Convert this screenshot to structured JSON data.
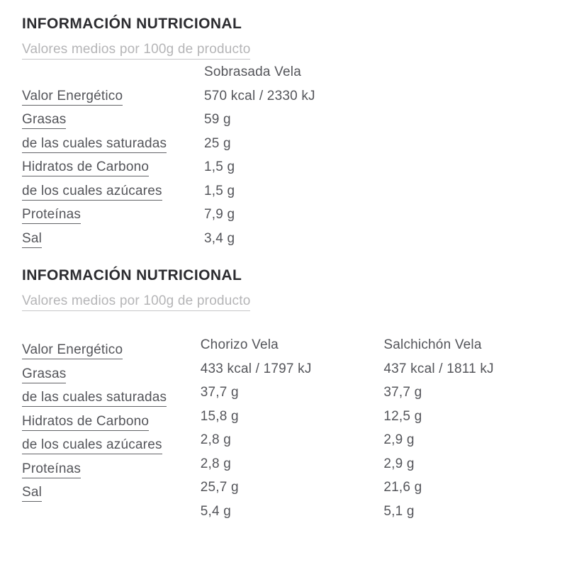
{
  "colors": {
    "heading_text": "#2c2c30",
    "body_text": "#54555a",
    "muted_subtitle": "#b5b5b7",
    "background": "#ffffff"
  },
  "sections": [
    {
      "heading": "INFORMACIÓN NUTRICIONAL",
      "subtitle": "Valores medios por 100g de producto",
      "columns": [
        "Sobrasada Vela"
      ],
      "row_labels": [
        "Valor Energético",
        "Grasas",
        "de las cuales saturadas",
        "Hidratos de Carbono",
        "de los cuales azúcares",
        "Proteínas",
        "Sal"
      ],
      "value_rows": [
        [
          "570 kcal / 2330 kJ"
        ],
        [
          "59 g"
        ],
        [
          "25 g"
        ],
        [
          "1,5 g"
        ],
        [
          "1,5 g"
        ],
        [
          "7,9 g"
        ],
        [
          "3,4 g"
        ]
      ]
    },
    {
      "heading": "INFORMACIÓN NUTRICIONAL",
      "subtitle": "Valores medios por 100g de producto",
      "columns": [
        "Chorizo Vela",
        "Salchichón Vela"
      ],
      "row_labels": [
        "Valor Energético",
        "Grasas",
        "de las cuales saturadas",
        "Hidratos de Carbono",
        "de los cuales azúcares",
        "Proteínas",
        "Sal"
      ],
      "value_rows": [
        [
          "433 kcal / 1797 kJ",
          "437 kcal / 1811 kJ"
        ],
        [
          "37,7 g",
          "37,7 g"
        ],
        [
          "15,8 g",
          "12,5 g"
        ],
        [
          "2,8 g",
          "2,9 g"
        ],
        [
          "2,8 g",
          "2,9 g"
        ],
        [
          "25,7 g",
          "21,6 g"
        ],
        [
          "5,4 g",
          "5,1 g"
        ]
      ]
    }
  ]
}
